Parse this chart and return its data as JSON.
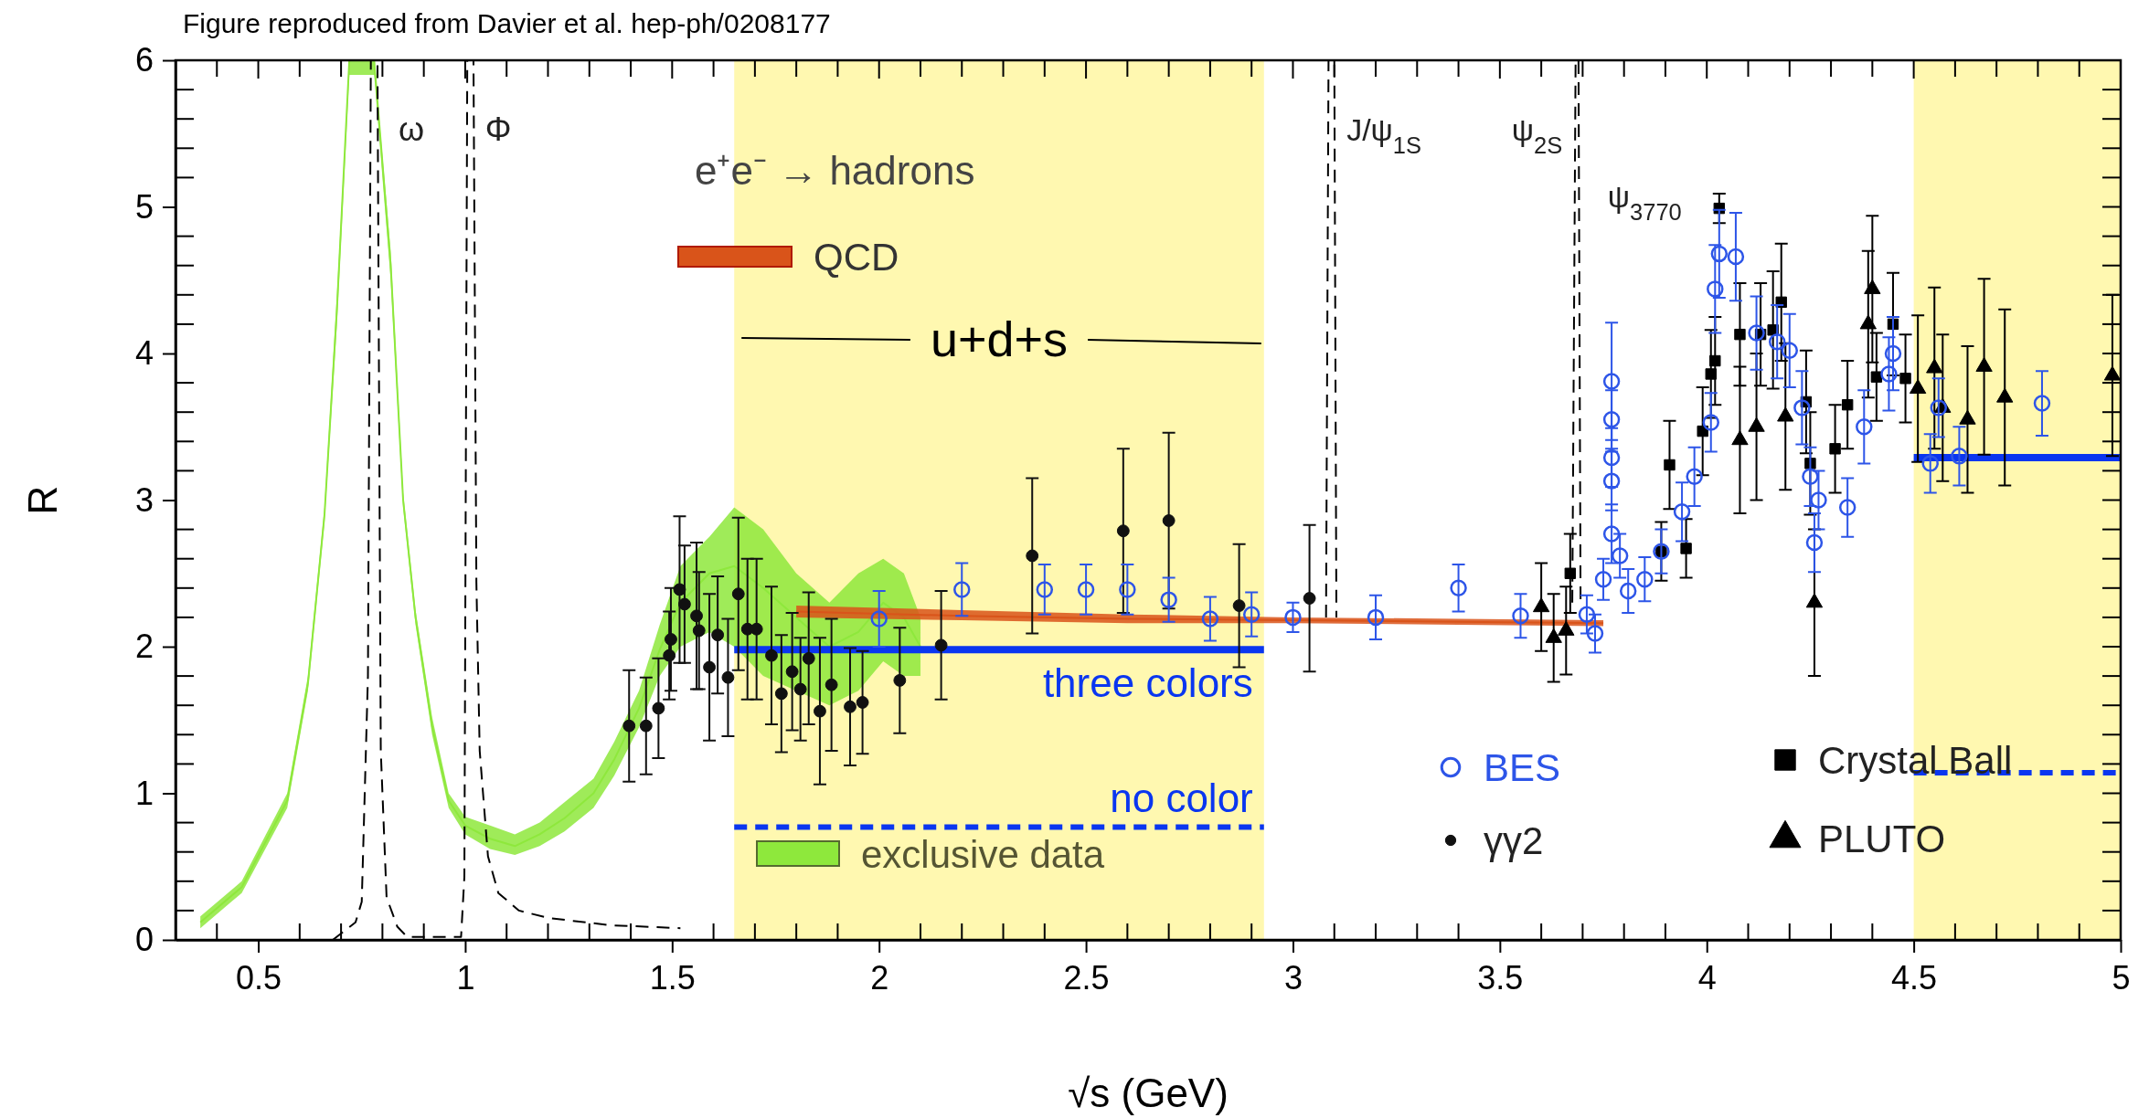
{
  "chart_data": {
    "type": "scatter",
    "xlabel": "√s   (GeV)",
    "ylabel": "R",
    "xlim": [
      0.3,
      5
    ],
    "ylim": [
      0,
      6
    ],
    "xticks": [
      0.5,
      1,
      1.5,
      2,
      2.5,
      3,
      3.5,
      4,
      4.5,
      5
    ],
    "yticks": [
      0,
      1,
      2,
      3,
      4,
      5,
      6
    ],
    "grid": false,
    "legend": "bottom right",
    "bands": [
      {
        "axis": "x",
        "from": 1.65,
        "to": 2.93,
        "color": "#fff8b0"
      },
      {
        "axis": "x",
        "from": 4.5,
        "to": 5,
        "color": "#fff8b0"
      }
    ],
    "annotations": [
      "Figure reproduced from Davier et al. hep-ph/0208177",
      "e⁺e⁻ → hadrons",
      "u+d+s",
      "ω",
      "Φ",
      "J/ψ$_{1S}$",
      "ψ$_{2S}$",
      "ψ$_{3770}$"
    ],
    "series": [
      {
        "name": "exclusive data",
        "type": "line",
        "color": "#8ee83c",
        "x": [
          0.36,
          0.46,
          0.57,
          0.62,
          0.66,
          0.69,
          0.72,
          0.78,
          0.82,
          0.85,
          0.88,
          0.92,
          0.96,
          1.0,
          1.06,
          1.12,
          1.18,
          1.24,
          1.31,
          1.36,
          1.42,
          1.47,
          1.52,
          1.59,
          1.65,
          1.72,
          1.8,
          1.88,
          1.95,
          2.01,
          2.06,
          2.1
        ],
        "values": [
          0.12,
          0.36,
          0.95,
          1.75,
          2.9,
          4.3,
          6,
          6,
          4.6,
          3.0,
          2.2,
          1.46,
          0.95,
          0.78,
          0.69,
          0.64,
          0.72,
          0.83,
          1.0,
          1.23,
          1.58,
          1.98,
          2.3,
          2.5,
          2.55,
          2.4,
          2.2,
          2.0,
          2.1,
          2.3,
          2.2,
          2.0
        ],
        "lower": [
          0.08,
          0.32,
          0.9,
          1.7,
          2.85,
          4.2,
          5.9,
          5.9,
          4.5,
          2.95,
          2.15,
          1.4,
          0.9,
          0.72,
          0.62,
          0.58,
          0.64,
          0.74,
          0.9,
          1.12,
          1.45,
          1.8,
          2.0,
          2.1,
          2.0,
          1.8,
          1.7,
          1.6,
          1.7,
          1.9,
          1.8,
          1.8
        ],
        "upper": [
          0.16,
          0.4,
          1.0,
          1.8,
          2.95,
          4.4,
          6,
          6,
          4.7,
          3.05,
          2.25,
          1.52,
          1.0,
          0.84,
          0.78,
          0.72,
          0.8,
          0.94,
          1.1,
          1.35,
          1.7,
          2.15,
          2.55,
          2.75,
          2.95,
          2.8,
          2.5,
          2.3,
          2.5,
          2.6,
          2.5,
          2.2
        ]
      },
      {
        "type": "line",
        "color": "#000000",
        "line_style": "dashed",
        "x": [
          0.68,
          0.735,
          0.75,
          0.765,
          0.772,
          0.788,
          0.796,
          0.81,
          0.836,
          0.86,
          0.99,
          0.998,
          1.005,
          1.02,
          1.027,
          1.035,
          1.055,
          1.08,
          1.13,
          1.2,
          1.35,
          1.52,
          1.6,
          3.08,
          3.086,
          3.1,
          3.105,
          3.2,
          3.675,
          3.683,
          3.69,
          3.695
        ],
        "values": [
          0,
          0.12,
          0.26,
          1.8,
          6,
          6,
          1.29,
          0.29,
          0.09,
          0.02,
          0.02,
          0.43,
          6,
          6,
          2.44,
          1.29,
          0.57,
          0.32,
          0.2,
          0.15,
          0.1,
          0.08,
          null,
          2.2,
          6,
          6,
          2.2,
          null,
          2.3,
          6,
          6,
          2.3
        ]
      },
      {
        "name": "QCD",
        "type": "line",
        "color": "#d9541a",
        "x": [
          1.8,
          2.2,
          2.6,
          3.0,
          3.4,
          3.75
        ],
        "values": [
          2.24,
          2.21,
          2.19,
          2.18,
          2.17,
          2.16
        ],
        "lower": [
          2.2,
          2.18,
          2.16,
          2.16,
          2.15,
          2.14
        ],
        "upper": [
          2.28,
          2.25,
          2.22,
          2.2,
          2.19,
          2.18
        ]
      },
      {
        "name": "three colors",
        "type": "line",
        "color": "#0a36f0",
        "x": [
          1.65,
          2.93,
          3.0,
          4.5,
          5.0
        ],
        "values": [
          1.98,
          1.98,
          null,
          3.29,
          3.29
        ]
      },
      {
        "name": "no color",
        "type": "line",
        "color": "#0a36f0",
        "line_style": "dashed",
        "x": [
          1.65,
          2.93,
          3.0,
          4.5,
          5.0
        ],
        "values": [
          0.77,
          0.77,
          null,
          1.14,
          1.14
        ]
      },
      {
        "name": "BES",
        "marker": "circle",
        "color": "#2d55e8",
        "x": [
          2.0,
          2.2,
          2.4,
          2.5,
          2.6,
          2.7,
          2.8,
          2.9,
          3.0,
          3.2,
          3.4,
          3.55,
          3.71,
          3.73,
          3.75,
          3.77,
          3.77,
          3.77,
          3.77,
          3.77,
          3.79,
          3.81,
          3.85,
          3.89,
          3.94,
          3.97,
          4.01,
          4.02,
          4.03,
          4.07,
          4.12,
          4.17,
          4.2,
          4.23,
          4.25,
          4.26,
          4.27,
          4.34,
          4.38,
          4.44,
          4.45,
          4.54,
          4.56,
          4.61,
          4.81
        ],
        "values": [
          2.19,
          2.39,
          2.39,
          2.39,
          2.39,
          2.32,
          2.19,
          2.22,
          2.2,
          2.2,
          2.4,
          2.21,
          2.22,
          2.09,
          2.46,
          3.81,
          3.55,
          3.29,
          3.13,
          2.77,
          2.62,
          2.38,
          2.46,
          2.65,
          2.92,
          3.16,
          3.53,
          4.44,
          4.68,
          4.66,
          4.14,
          4.08,
          4.02,
          3.63,
          3.16,
          2.71,
          3.0,
          2.95,
          3.5,
          3.86,
          4.0,
          3.25,
          3.63,
          3.3,
          3.66
        ],
        "errors": [
          0.19,
          0.18,
          0.17,
          0.17,
          0.17,
          0.15,
          0.15,
          0.15,
          0.1,
          0.15,
          0.16,
          0.15,
          0.13,
          0.13,
          0.14,
          0.4,
          0.2,
          0.2,
          0.2,
          0.2,
          0.15,
          0.15,
          0.15,
          0.15,
          0.2,
          0.2,
          0.2,
          0.3,
          0.3,
          0.3,
          0.25,
          0.25,
          0.25,
          0.25,
          0.2,
          0.2,
          0.2,
          0.2,
          0.25,
          0.25,
          0.25,
          0.2,
          0.2,
          0.2,
          0.22
        ]
      },
      {
        "name": "γγ2",
        "marker": "circle",
        "color": "#111111",
        "x": [
          1.396,
          1.437,
          1.467,
          1.493,
          1.497,
          1.518,
          1.53,
          1.559,
          1.565,
          1.59,
          1.61,
          1.635,
          1.66,
          1.682,
          1.704,
          1.74,
          1.764,
          1.79,
          1.81,
          1.83,
          1.857,
          1.885,
          1.93,
          1.96,
          2.05,
          2.15,
          2.37,
          2.59,
          2.7,
          2.87,
          3.04
        ],
        "values": [
          1.46,
          1.46,
          1.58,
          1.94,
          2.05,
          2.39,
          2.29,
          2.21,
          2.11,
          1.86,
          2.08,
          1.79,
          2.36,
          2.12,
          2.12,
          1.94,
          1.68,
          1.83,
          1.71,
          1.92,
          1.56,
          1.74,
          1.59,
          1.62,
          1.77,
          2.01,
          2.62,
          2.79,
          2.86,
          2.28,
          2.33
        ],
        "errors": [
          0.38,
          0.33,
          0.34,
          0.3,
          0.35,
          0.5,
          0.4,
          0.5,
          0.4,
          0.5,
          0.4,
          0.4,
          0.52,
          0.48,
          0.48,
          0.47,
          0.4,
          0.4,
          0.35,
          0.45,
          0.5,
          0.45,
          0.4,
          0.35,
          0.36,
          0.37,
          0.53,
          0.56,
          0.6,
          0.42,
          0.5
        ]
      },
      {
        "name": "Crystal Ball",
        "marker": "square",
        "color": "#000000",
        "x": [
          3.67,
          3.89,
          3.91,
          3.95,
          3.99,
          4.01,
          4.02,
          4.03,
          4.08,
          4.13,
          4.16,
          4.18,
          4.24,
          4.25,
          4.31,
          4.34,
          4.41,
          4.45,
          4.48
        ],
        "values": [
          2.5,
          2.65,
          3.24,
          2.67,
          3.47,
          3.86,
          3.95,
          4.99,
          4.13,
          4.13,
          4.16,
          4.35,
          3.67,
          3.25,
          3.35,
          3.65,
          3.84,
          4.2,
          3.83
        ],
        "errors": [
          0.27,
          0.2,
          0.3,
          0.2,
          0.3,
          0.3,
          0.3,
          0.1,
          0.35,
          0.35,
          0.4,
          0.4,
          0.35,
          0.35,
          0.3,
          0.3,
          0.3,
          0.35,
          0.3
        ]
      },
      {
        "name": "PLUTO",
        "marker": "triangle",
        "color": "#000000",
        "x": [
          3.6,
          3.63,
          3.66,
          4.08,
          4.12,
          4.19,
          4.26,
          4.39,
          4.4,
          4.51,
          4.55,
          4.57,
          4.63,
          4.67,
          4.72,
          4.98
        ],
        "values": [
          2.27,
          2.06,
          2.11,
          3.41,
          3.5,
          3.57,
          2.3,
          4.2,
          4.44,
          3.76,
          3.9,
          3.63,
          3.55,
          3.91,
          3.7,
          3.85
        ],
        "errors": [
          0.3,
          0.3,
          0.3,
          0.5,
          0.5,
          0.5,
          0.5,
          0.5,
          0.5,
          0.5,
          0.55,
          0.5,
          0.5,
          0.6,
          0.6,
          0.55
        ]
      }
    ]
  }
}
